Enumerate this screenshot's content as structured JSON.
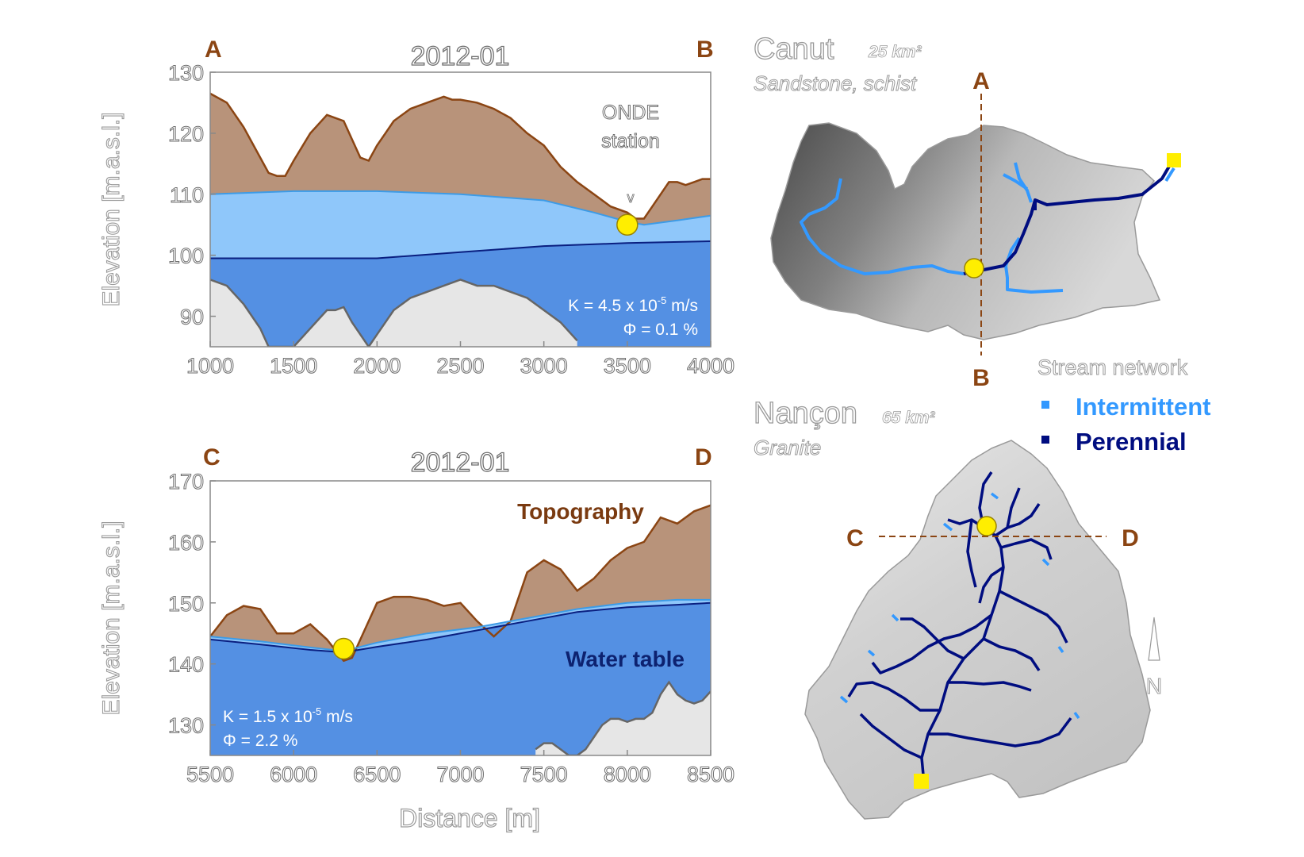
{
  "chart_data": [
    {
      "type": "area",
      "panel": "top-left",
      "title": "2012-01",
      "corner_left": "A",
      "corner_right": "B",
      "ylabel": "Elevation [m.a.s.l.]",
      "xlabel": "",
      "xlim": [
        1000,
        4000
      ],
      "ylim": [
        85,
        130
      ],
      "xticks": [
        1000,
        1500,
        2000,
        2500,
        3000,
        3500,
        4000
      ],
      "yticks": [
        90,
        100,
        110,
        120,
        130
      ],
      "series": [
        {
          "name": "Topography",
          "x": [
            1000,
            1100,
            1200,
            1300,
            1350,
            1400,
            1450,
            1500,
            1600,
            1700,
            1750,
            1800,
            1850,
            1900,
            1950,
            2000,
            2050,
            2100,
            2200,
            2300,
            2400,
            2450,
            2500,
            2600,
            2700,
            2800,
            2900,
            3000,
            3100,
            3200,
            3300,
            3400,
            3500,
            3550,
            3600,
            3650,
            3700,
            3750,
            3800,
            3850,
            3900,
            3950,
            4000
          ],
          "values": [
            126.5,
            125,
            121,
            116,
            113.5,
            113,
            113,
            115.5,
            120,
            123,
            122.5,
            122,
            119,
            116,
            115.5,
            118,
            120,
            122,
            124,
            125,
            126,
            125.5,
            125.5,
            125,
            124,
            122.5,
            120,
            118,
            114.5,
            112,
            110,
            108,
            107,
            106,
            106,
            108,
            110,
            112,
            112,
            111.5,
            112,
            112.5,
            112.5
          ]
        },
        {
          "name": "Water table (light)",
          "x": [
            1000,
            1500,
            2000,
            2500,
            3000,
            3300,
            3500,
            3600,
            3800,
            4000
          ],
          "values": [
            110,
            110.5,
            110.5,
            110,
            109,
            107,
            105.5,
            105,
            105.7,
            106.5
          ]
        },
        {
          "name": "Water table (perennial)",
          "x": [
            1000,
            1500,
            2000,
            2500,
            3000,
            3500,
            4000
          ],
          "values": [
            99.5,
            99.5,
            99.5,
            100.5,
            101.5,
            102,
            102.3
          ]
        },
        {
          "name": "Basement",
          "x": [
            1000,
            1100,
            1200,
            1300,
            1350,
            1400,
            1500,
            1600,
            1700,
            1750,
            1800,
            1850,
            1900,
            1950,
            2000,
            2100,
            2200,
            2300,
            2400,
            2500,
            2600,
            2700,
            2800,
            2900,
            3000,
            3100,
            3200
          ],
          "values": [
            96,
            95,
            92,
            88,
            85,
            85,
            85,
            88,
            91,
            91,
            91.5,
            89,
            87,
            85,
            87,
            91,
            93,
            94,
            95,
            96,
            95,
            95,
            94,
            93,
            91,
            89,
            86
          ]
        }
      ],
      "station_marker": {
        "x": 3500,
        "y": 105
      },
      "annotations": {
        "station_line1": "ONDE",
        "station_line2": "station",
        "arrow": "v",
        "k_prefix": "K = 4.5 x 10",
        "k_exp": "-5",
        "k_unit": " m/s",
        "phi": "Φ = 0.1 %"
      }
    },
    {
      "type": "area",
      "panel": "bottom-left",
      "title": "2012-01",
      "corner_left": "C",
      "corner_right": "D",
      "ylabel": "Elevation [m.a.s.l.]",
      "xlabel": "Distance [m]",
      "xlim": [
        5500,
        8500
      ],
      "ylim": [
        125,
        170
      ],
      "xticks": [
        5500,
        6000,
        6500,
        7000,
        7500,
        8000,
        8500
      ],
      "yticks": [
        130,
        140,
        150,
        160,
        170
      ],
      "series": [
        {
          "name": "Topography",
          "x": [
            5500,
            5600,
            5700,
            5800,
            5900,
            6000,
            6100,
            6200,
            6300,
            6350,
            6400,
            6500,
            6600,
            6700,
            6800,
            6900,
            7000,
            7100,
            7200,
            7300,
            7400,
            7500,
            7600,
            7700,
            7800,
            7900,
            8000,
            8100,
            8200,
            8300,
            8400,
            8500
          ],
          "values": [
            144.5,
            148,
            149.5,
            149,
            145,
            145,
            146.5,
            144,
            140.5,
            141,
            144,
            150,
            151,
            151,
            150.5,
            149.5,
            150,
            147,
            144.5,
            147,
            155,
            157,
            155.5,
            152,
            154,
            157,
            159,
            160,
            164,
            163,
            165,
            166
          ]
        },
        {
          "name": "Water table (light)",
          "x": [
            5500,
            5800,
            6100,
            6300,
            6500,
            6800,
            7100,
            7400,
            7700,
            8000,
            8300,
            8500
          ],
          "values": [
            144.5,
            143.7,
            142.7,
            142.1,
            143.5,
            145,
            146,
            147.5,
            149,
            150,
            150.5,
            150.5
          ]
        },
        {
          "name": "Water table (perennial)",
          "x": [
            5500,
            5800,
            6100,
            6300,
            6500,
            6800,
            7100,
            7400,
            7700,
            8000,
            8300,
            8500
          ],
          "values": [
            144,
            143.2,
            142.3,
            141.9,
            142.8,
            144,
            145.5,
            147,
            148.5,
            149.3,
            149.7,
            150
          ]
        },
        {
          "name": "Basement",
          "x": [
            7450,
            7500,
            7550,
            7600,
            7650,
            7700,
            7750,
            7800,
            7850,
            7900,
            7950,
            8000,
            8050,
            8100,
            8150,
            8200,
            8250,
            8300,
            8350,
            8400,
            8450,
            8500
          ],
          "values": [
            126,
            127,
            127,
            126,
            125,
            125,
            126,
            128,
            130,
            131,
            131,
            130.5,
            131,
            131,
            132,
            135,
            137,
            135,
            134,
            133.5,
            134,
            135.5
          ]
        }
      ],
      "station_marker": {
        "x": 6300,
        "y": 142.5
      },
      "annotations": {
        "topography_label": "Topography",
        "water_table_label": "Water table",
        "k_prefix": "K = 1.5 x 10",
        "k_exp": "-5",
        "k_unit": " m/s",
        "phi": "Φ = 2.2 %"
      }
    }
  ],
  "maps": {
    "canut": {
      "name": "Canut",
      "area": "25 km²",
      "geology": "Sandstone, schist",
      "section_top": "A",
      "section_bottom": "B"
    },
    "nancon": {
      "name": "Nançon",
      "area": "65 km²",
      "geology": "Granite",
      "section_left": "C",
      "section_right": "D",
      "north": "N"
    },
    "legend": {
      "title": "Stream network",
      "intermittent": "Intermittent",
      "perennial": "Perennial"
    }
  },
  "colors": {
    "topography": "#b8937a",
    "topography_line": "#8b4513",
    "water_light": "#8fc7fa",
    "water_light_line": "#3d9be6",
    "water_main": "#5490e3",
    "perennial_line": "#0a1f80",
    "basement": "#e6e6e6",
    "corner_label": "#8b4513",
    "marker": "#ffee00",
    "intermittent_stream": "#3399ff",
    "perennial_stream": "#000d80",
    "outlet": "#ffee00"
  }
}
